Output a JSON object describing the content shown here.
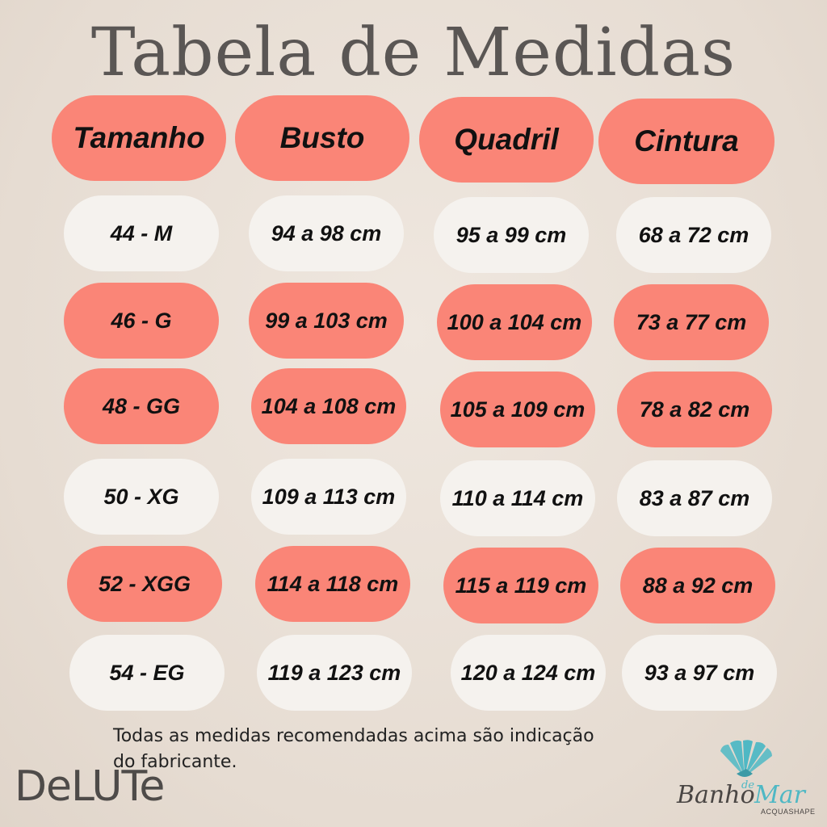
{
  "title": "Tabela de Medidas",
  "headers": [
    "Tamanho",
    "Busto",
    "Quadril",
    "Cintura"
  ],
  "rows": [
    [
      "44 - M",
      "94 a 98 cm",
      "95 a 99 cm",
      "68 a 72 cm"
    ],
    [
      "46 - G",
      "99 a 103 cm",
      "100 a 104 cm",
      "73 a 77 cm"
    ],
    [
      "48 - GG",
      "104 a 108 cm",
      "105 a 109 cm",
      "78 a 82 cm"
    ],
    [
      "50 - XG",
      "109 a 113 cm",
      "110 a 114 cm",
      "83 a 87 cm"
    ],
    [
      "52 - XGG",
      "114 a 118 cm",
      "115 a 119 cm",
      "88 a 92 cm"
    ],
    [
      "54 - EG",
      "119 a 123 cm",
      "120 a 124 cm",
      "93 a 97 cm"
    ]
  ],
  "note": {
    "line1": "Todas as medidas recomendadas acima são indicação",
    "line2": "do fabricante."
  },
  "logos": {
    "delute": "DeLUTe",
    "banho_main": "Banho",
    "banho_de": "de",
    "banho_mar": "Mar",
    "banho_sub": "ACQUASHAPE"
  },
  "colors": {
    "coral": "#fa8577",
    "light": "#f5f2ee",
    "background": "#e9e0d7",
    "teal": "#4fb8c4"
  }
}
